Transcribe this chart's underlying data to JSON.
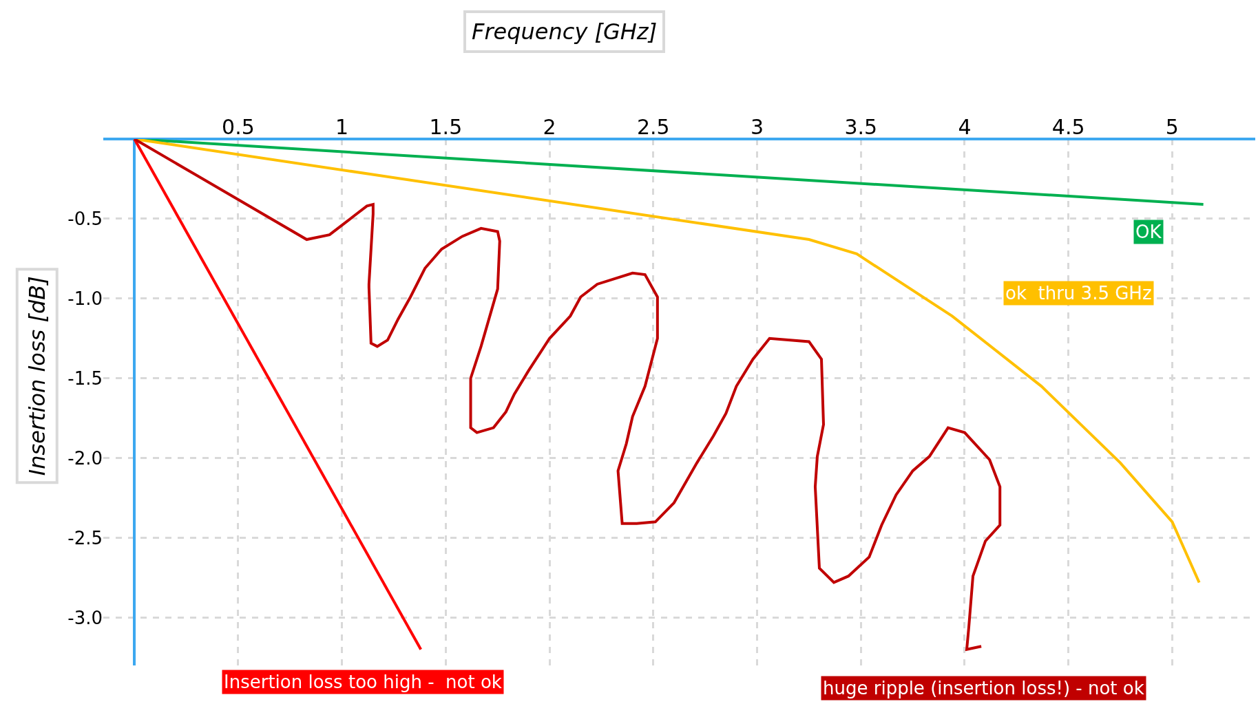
{
  "chart_data": {
    "type": "line",
    "xlabel": "Frequency [GHz]",
    "ylabel": "Insertion loss [dB]",
    "xlim": [
      -0.15,
      5.4
    ],
    "ylim": [
      -3.3,
      0
    ],
    "xticks": [
      0.5,
      1,
      1.5,
      2,
      2.5,
      3,
      3.5,
      4,
      4.5,
      5
    ],
    "yticks": [
      {
        "value": -0.5,
        "label": "-0.5"
      },
      {
        "value": -1,
        "label": "-1.0"
      },
      {
        "value": -1.5,
        "label": "-1.5"
      },
      {
        "value": -2,
        "label": "-2.0"
      },
      {
        "value": -2.5,
        "label": "-2.5"
      },
      {
        "value": -3,
        "label": "-3.0"
      }
    ],
    "grid": true,
    "series": [
      {
        "name": "OK",
        "color": "#00b050",
        "x": [
          0,
          5.15
        ],
        "values": [
          0,
          -0.41
        ]
      },
      {
        "name": "ok  thru 3.5 GHz",
        "color": "#ffc000",
        "x": [
          0,
          3.25,
          3.48,
          3.94,
          4.37,
          4.75,
          5.0,
          5.13
        ],
        "values": [
          0,
          -0.63,
          -0.72,
          -1.11,
          -1.55,
          -2.03,
          -2.4,
          -2.78
        ]
      },
      {
        "name": "Insertion loss too high -  not ok",
        "color": "#ff0000",
        "x": [
          0,
          1.38
        ],
        "values": [
          0,
          -3.2
        ]
      },
      {
        "name": "huge ripple (insertion loss!) - not ok",
        "color": "#c00000",
        "x": [
          0,
          0.83,
          0.94,
          0.98,
          1.06,
          1.12,
          1.15,
          1.15,
          1.13,
          1.13,
          1.14,
          1.17,
          1.22,
          1.27,
          1.33,
          1.4,
          1.48,
          1.58,
          1.67,
          1.75,
          1.76,
          1.75,
          1.67,
          1.62,
          1.62,
          1.65,
          1.73,
          1.79,
          1.83,
          1.9,
          2.0,
          2.1,
          2.15,
          2.23,
          2.4,
          2.46,
          2.52,
          2.52,
          2.46,
          2.4,
          2.37,
          2.33,
          2.35,
          2.42,
          2.51,
          2.6,
          2.71,
          2.79,
          2.85,
          2.9,
          2.98,
          3.06,
          3.25,
          3.31,
          3.32,
          3.29,
          3.28,
          3.3,
          3.37,
          3.44,
          3.54,
          3.6,
          3.67,
          3.75,
          3.83,
          3.92,
          4.0,
          4.12,
          4.17,
          4.17,
          4.1,
          4.04,
          4.02,
          4.01,
          4.08
        ],
        "values": [
          0,
          -0.63,
          -0.6,
          -0.56,
          -0.48,
          -0.42,
          -0.41,
          -0.47,
          -0.91,
          -0.93,
          -1.28,
          -1.3,
          -1.26,
          -1.13,
          -0.99,
          -0.81,
          -0.69,
          -0.61,
          -0.56,
          -0.58,
          -0.64,
          -0.94,
          -1.3,
          -1.5,
          -1.81,
          -1.84,
          -1.81,
          -1.71,
          -1.6,
          -1.45,
          -1.25,
          -1.11,
          -0.99,
          -0.91,
          -0.84,
          -0.85,
          -0.99,
          -1.25,
          -1.55,
          -1.74,
          -1.91,
          -2.08,
          -2.41,
          -2.41,
          -2.4,
          -2.28,
          -2.03,
          -1.86,
          -1.72,
          -1.55,
          -1.38,
          -1.25,
          -1.27,
          -1.38,
          -1.79,
          -1.99,
          -2.18,
          -2.69,
          -2.78,
          -2.74,
          -2.62,
          -2.42,
          -2.23,
          -2.08,
          -1.99,
          -1.81,
          -1.84,
          -2.01,
          -2.18,
          -2.42,
          -2.52,
          -2.74,
          -3.06,
          -3.2,
          -3.18
        ]
      }
    ]
  }
}
